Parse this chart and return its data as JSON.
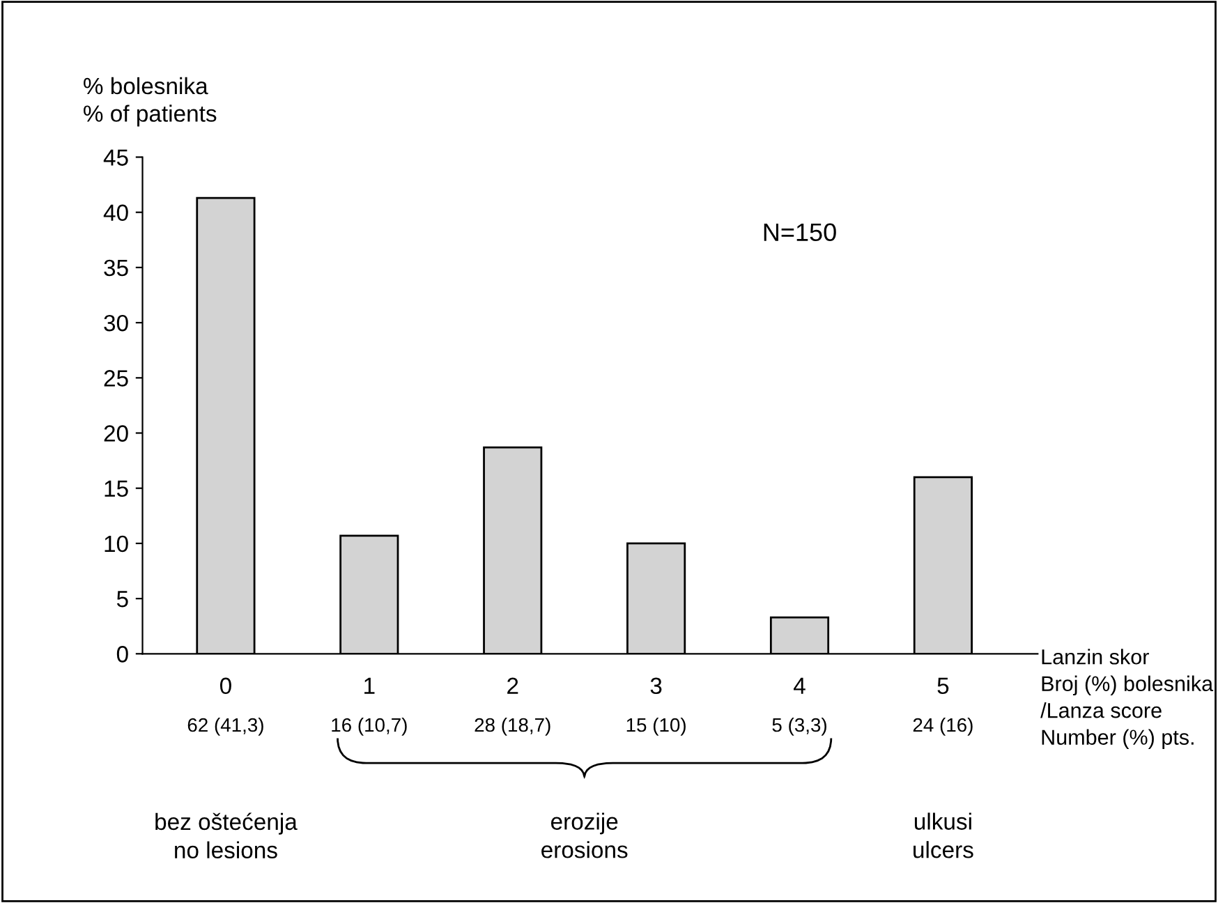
{
  "chart_data": {
    "type": "bar",
    "ylabel": "% bolesnika\n% of patients",
    "xlabel": "Lanzin skor\nBroj (%) bolesnika\n/Lanza score\nNumber (%) pts.",
    "categories": [
      "0",
      "1",
      "2",
      "3",
      "4",
      "5"
    ],
    "values": [
      41.3,
      10.7,
      18.7,
      10,
      3.3,
      16
    ],
    "value_labels": [
      "62 (41,3)",
      "16 (10,7)",
      "28 (18,7)",
      "15 (10)",
      "5 (3,3)",
      "24 (16)"
    ],
    "color": "#d3d3d3",
    "ylim": [
      0,
      45
    ],
    "yticks": [
      0,
      5,
      10,
      15,
      20,
      25,
      30,
      35,
      40,
      45
    ],
    "annotations": [
      "N=150",
      "bez oštećenja\nno lesions",
      "erozije\nerosions",
      "ulkusi\nulcers"
    ]
  }
}
